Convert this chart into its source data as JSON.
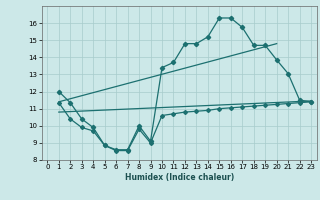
{
  "xlabel": "Humidex (Indice chaleur)",
  "xlim": [
    -0.5,
    23.5
  ],
  "ylim": [
    8,
    17
  ],
  "xticks": [
    0,
    1,
    2,
    3,
    4,
    5,
    6,
    7,
    8,
    9,
    10,
    11,
    12,
    13,
    14,
    15,
    16,
    17,
    18,
    19,
    20,
    21,
    22,
    23
  ],
  "yticks": [
    8,
    9,
    10,
    11,
    12,
    13,
    14,
    15,
    16
  ],
  "bg_color": "#cce8e8",
  "line_color": "#1c7070",
  "line1_x": [
    1,
    2,
    3,
    4,
    5,
    6,
    7,
    8,
    9,
    10,
    11,
    12,
    13,
    14,
    15,
    16,
    17,
    18,
    19,
    20,
    21,
    22,
    23
  ],
  "line1_y": [
    12.0,
    11.35,
    10.4,
    9.9,
    8.85,
    8.6,
    8.6,
    10.0,
    9.1,
    13.4,
    13.7,
    14.8,
    14.8,
    15.2,
    16.3,
    16.3,
    15.75,
    14.7,
    14.7,
    13.85,
    13.05,
    11.5,
    11.4
  ],
  "line2_x": [
    1,
    20
  ],
  "line2_y": [
    11.4,
    14.8
  ],
  "line3_x": [
    1,
    23
  ],
  "line3_y": [
    10.8,
    11.45
  ],
  "line4_x": [
    1,
    2,
    3,
    4,
    5,
    6,
    7,
    8,
    9,
    10,
    11,
    12,
    13,
    14,
    15,
    16,
    17,
    18,
    19,
    20,
    21,
    22,
    23
  ],
  "line4_y": [
    11.35,
    10.4,
    9.9,
    9.7,
    8.85,
    8.55,
    8.55,
    9.8,
    9.0,
    10.6,
    10.7,
    10.8,
    10.85,
    10.9,
    11.0,
    11.05,
    11.1,
    11.15,
    11.2,
    11.25,
    11.3,
    11.35,
    11.4
  ]
}
